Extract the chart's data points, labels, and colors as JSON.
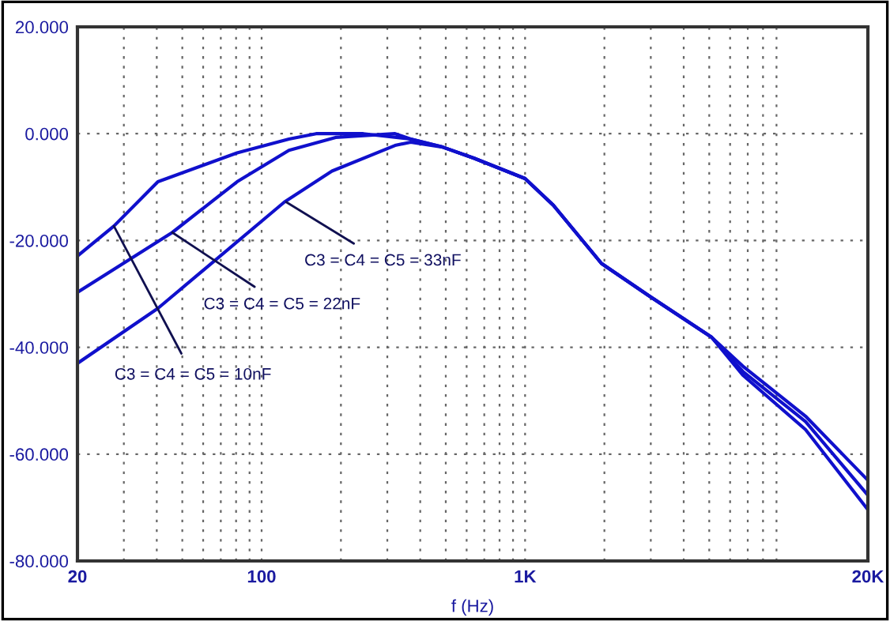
{
  "chart_data": {
    "type": "line",
    "xlabel": "f (Hz)",
    "log": "x",
    "xlim": [
      20,
      20000
    ],
    "ylim": [
      -80,
      20
    ],
    "xticks": [
      {
        "value": 20,
        "label": "20"
      },
      {
        "value": 30,
        "label": null
      },
      {
        "value": 40,
        "label": null
      },
      {
        "value": 50,
        "label": null
      },
      {
        "value": 60,
        "label": null
      },
      {
        "value": 70,
        "label": null
      },
      {
        "value": 80,
        "label": null
      },
      {
        "value": 90,
        "label": null
      },
      {
        "value": 100,
        "label": "100"
      },
      {
        "value": 200,
        "label": null
      },
      {
        "value": 300,
        "label": null
      },
      {
        "value": 400,
        "label": null
      },
      {
        "value": 500,
        "label": null
      },
      {
        "value": 600,
        "label": null
      },
      {
        "value": 700,
        "label": null
      },
      {
        "value": 800,
        "label": null
      },
      {
        "value": 900,
        "label": null
      },
      {
        "value": 1000,
        "label": "1K"
      },
      {
        "value": 2000,
        "label": null
      },
      {
        "value": 3000,
        "label": null
      },
      {
        "value": 4000,
        "label": null
      },
      {
        "value": 5000,
        "label": null
      },
      {
        "value": 6000,
        "label": null
      },
      {
        "value": 7000,
        "label": null
      },
      {
        "value": 8000,
        "label": null
      },
      {
        "value": 9000,
        "label": null
      },
      {
        "value": 20000,
        "label": "20K"
      }
    ],
    "yticks": [
      {
        "value": -80,
        "label": "-80.000"
      },
      {
        "value": -60,
        "label": "-60.000"
      },
      {
        "value": -40,
        "label": "-40.000"
      },
      {
        "value": -20,
        "label": "-20.000"
      },
      {
        "value": 0,
        "label": "0.000"
      },
      {
        "value": 20,
        "label": "20.000"
      }
    ],
    "grid": true,
    "marker": "none",
    "line_style": "solid",
    "series": [
      {
        "color": "#1010cc",
        "x": [
          20,
          27.5,
          40.4,
          80.7,
          127,
          161,
          243,
          368,
          486,
          640,
          1000,
          1280,
          1950,
          2940,
          5100,
          6700,
          11600,
          20000
        ],
        "values": [
          -22.9,
          -17.3,
          -9.0,
          -3.6,
          -1.0,
          0,
          0,
          -1.0,
          -2.5,
          -4.6,
          -8.4,
          -13.4,
          -24.3,
          -30.3,
          -38.1,
          -45.2,
          -55.4,
          -70.4
        ]
      },
      {
        "color": "#1010cc",
        "x": [
          20,
          45.8,
          80.7,
          127,
          191,
          321,
          368,
          486,
          640,
          1000,
          1280,
          1950,
          2940,
          5100,
          6700,
          11600,
          20000
        ],
        "values": [
          -29.7,
          -18.5,
          -9.0,
          -3.1,
          -0.7,
          0,
          -1.0,
          -2.5,
          -4.6,
          -8.4,
          -13.4,
          -24.3,
          -30.3,
          -38.1,
          -44.5,
          -53.9,
          -67.7
        ]
      },
      {
        "color": "#1010cc",
        "x": [
          20,
          40.4,
          122,
          185,
          321,
          368,
          486,
          640,
          1000,
          1280,
          1950,
          2940,
          5100,
          6700,
          11600,
          20000
        ],
        "values": [
          -43.0,
          -32.7,
          -12.8,
          -7.0,
          -2.2,
          -1.6,
          -2.5,
          -4.6,
          -8.4,
          -13.4,
          -24.3,
          -30.3,
          -38.1,
          -43.5,
          -52.9,
          -64.9
        ]
      }
    ],
    "annotations": [
      {
        "text": "C3 = C4 = C5 = 10nF",
        "x": 27.5,
        "y": -17.3
      },
      {
        "text": "C3 = C4 = C5 = 22nF",
        "x": 45.8,
        "y": -18.5
      },
      {
        "text": "C3 = C4 = C5 = 33nF",
        "x": 124,
        "y": -12.8
      }
    ]
  }
}
